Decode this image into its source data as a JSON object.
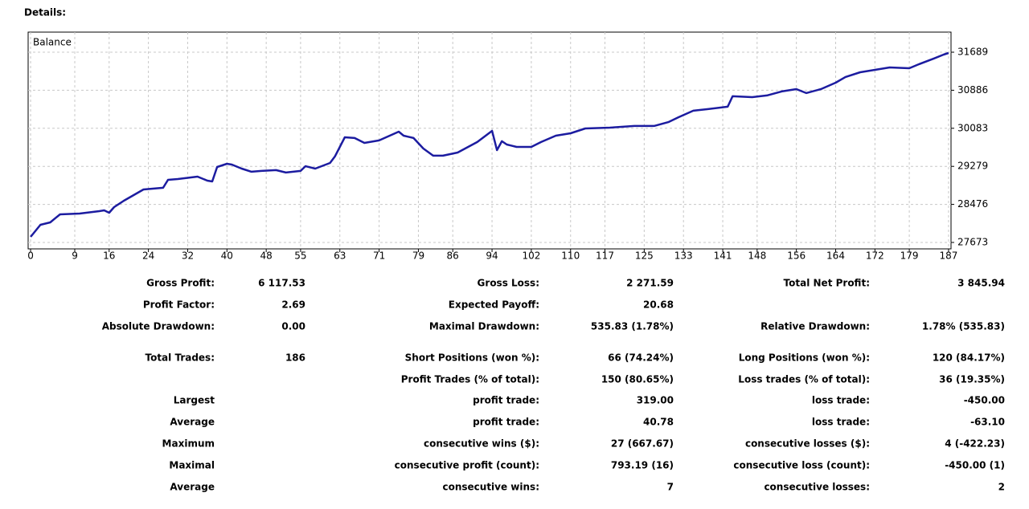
{
  "header": {
    "title": "Details:"
  },
  "chart_data": {
    "type": "line",
    "title": "Balance",
    "x": [
      0,
      2,
      4,
      5,
      6,
      10,
      14,
      15,
      16,
      17,
      19,
      21,
      23,
      27,
      28,
      30,
      34,
      36,
      37,
      38,
      40,
      41,
      43,
      45,
      47,
      50,
      52,
      55,
      56,
      58,
      61,
      62,
      64,
      66,
      68,
      71,
      75,
      76,
      78,
      80,
      82,
      84,
      87,
      91,
      94,
      95,
      96,
      97,
      99,
      102,
      104,
      107,
      110,
      113,
      118,
      123,
      127,
      130,
      132,
      135,
      138,
      142,
      143,
      147,
      150,
      153,
      156,
      158,
      161,
      164,
      166,
      169,
      172,
      175,
      179,
      181,
      184,
      186,
      187
    ],
    "series": [
      {
        "name": "Balance",
        "color": "#1c1ca0",
        "values": [
          27792,
          28046,
          28097,
          28182,
          28266,
          28283,
          28334,
          28351,
          28300,
          28419,
          28554,
          28673,
          28792,
          28826,
          28995,
          29012,
          29063,
          28978,
          28961,
          29266,
          29334,
          29317,
          29232,
          29165,
          29182,
          29199,
          29148,
          29183,
          29283,
          29232,
          29351,
          29487,
          29893,
          29877,
          29775,
          29826,
          30012,
          29927,
          29877,
          29656,
          29504,
          29504,
          29571,
          29792,
          30029,
          29622,
          29809,
          29741,
          29690,
          29690,
          29792,
          29927,
          29978,
          30080,
          30097,
          30131,
          30131,
          30216,
          30317,
          30453,
          30487,
          30538,
          30758,
          30741,
          30775,
          30860,
          30910,
          30826,
          30910,
          31046,
          31165,
          31266,
          31317,
          31368,
          31351,
          31436,
          31555,
          31639,
          31673
        ]
      }
    ],
    "xlim": [
      -0.5,
      187.5
    ],
    "xticks": [
      0,
      9,
      16,
      24,
      32,
      40,
      48,
      55,
      63,
      71,
      79,
      86,
      94,
      102,
      110,
      117,
      125,
      133,
      141,
      148,
      156,
      164,
      172,
      179,
      187
    ],
    "ylim": [
      27537,
      32113
    ],
    "yticks": [
      27673,
      28476,
      29279,
      30083,
      30886,
      31689
    ],
    "grid": true
  },
  "table": {
    "rows": [
      [
        "Gross Profit:",
        "6 117.53",
        "Gross Loss:",
        "2 271.59",
        "Total Net Profit:",
        "3 845.94"
      ],
      [
        "Profit Factor:",
        "2.69",
        "Expected Payoff:",
        "20.68",
        null,
        null
      ],
      [
        "Absolute Drawdown:",
        "0.00",
        "Maximal Drawdown:",
        "535.83 (1.78%)",
        "Relative Drawdown:",
        "1.78% (535.83)"
      ],
      [
        "Total Trades:",
        "186",
        "Short Positions (won %):",
        "66 (74.24%)",
        "Long Positions (won %):",
        "120 (84.17%)"
      ],
      [
        null,
        null,
        "Profit Trades (% of total):",
        "150 (80.65%)",
        "Loss trades (% of total):",
        "36 (19.35%)"
      ],
      [
        "Largest",
        null,
        "profit trade:",
        "319.00",
        "loss trade:",
        "-450.00"
      ],
      [
        "Average",
        null,
        "profit trade:",
        "40.78",
        "loss trade:",
        "-63.10"
      ],
      [
        "Maximum",
        null,
        "consecutive wins ($):",
        "27 (667.67)",
        "consecutive losses ($):",
        "4 (-422.23)"
      ],
      [
        "Maximal",
        null,
        "consecutive profit (count):",
        "793.19 (16)",
        "consecutive loss (count):",
        "-450.00 (1)"
      ],
      [
        "Average",
        null,
        "consecutive wins:",
        "7",
        "consecutive losses:",
        "2"
      ]
    ]
  }
}
